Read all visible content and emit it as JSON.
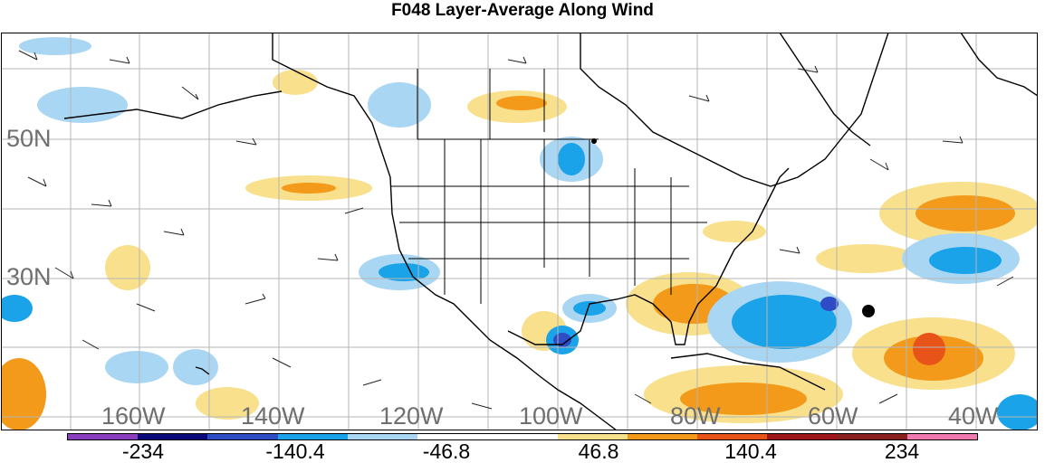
{
  "title": "F048 Layer-Average Along Wind",
  "map": {
    "lat_labels": [
      "50N",
      "30N"
    ],
    "lon_labels": [
      "160W",
      "140W",
      "120W",
      "100W",
      "80W",
      "60W",
      "40W"
    ],
    "marker": "filled-circle"
  },
  "colorbar": {
    "colors": [
      "#8a3fbf",
      "#0a0a7a",
      "#2e4cc4",
      "#1aa3e8",
      "#a9d6f2",
      "#ffffff",
      "#ffffff",
      "#f8e08c",
      "#f39a1a",
      "#e8531a",
      "#a0171b",
      "#8a2020",
      "#f07aae"
    ],
    "labels": [
      "-234",
      "-140.4",
      "-46.8",
      "46.8",
      "140.4",
      "234"
    ]
  }
}
